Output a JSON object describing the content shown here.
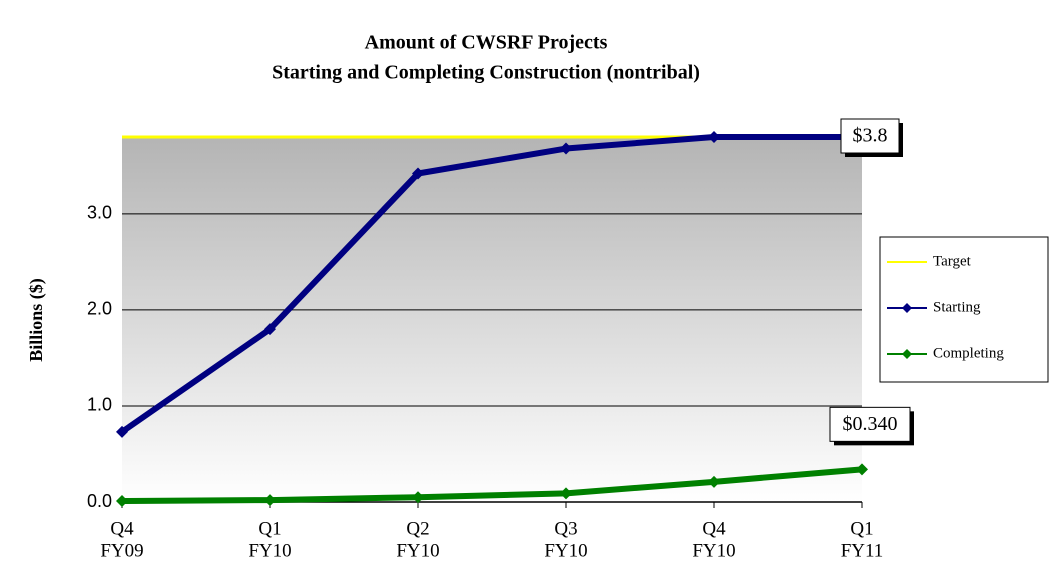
{
  "chart_data": {
    "type": "line",
    "title": [
      "Amount of CWSRF Projects",
      "Starting and Completing Construction (nontribal)"
    ],
    "y_label": "Billions ($)",
    "categories": [
      [
        "Q4",
        "FY09"
      ],
      [
        "Q1",
        "FY10"
      ],
      [
        "Q2",
        "FY10"
      ],
      [
        "Q3",
        "FY10"
      ],
      [
        "Q4",
        "FY10"
      ],
      [
        "Q1",
        "FY11"
      ]
    ],
    "series": [
      {
        "name": "Target",
        "color": "#ffff00",
        "values": [
          3.8,
          3.8,
          3.8,
          3.8,
          3.8,
          3.8
        ],
        "markers": false
      },
      {
        "name": "Starting",
        "color": "#000080",
        "values": [
          0.73,
          1.8,
          3.42,
          3.68,
          3.8,
          3.8
        ],
        "markers": true
      },
      {
        "name": "Completing",
        "color": "#008000",
        "values": [
          0.01,
          0.02,
          0.05,
          0.09,
          0.21,
          0.34
        ],
        "markers": true
      }
    ],
    "annotations": [
      {
        "text": "$3.8",
        "series": 1,
        "point": 5
      },
      {
        "text": "$0.340",
        "series": 2,
        "point": 5
      }
    ],
    "ylim": [
      0,
      3.8
    ],
    "yticks": [
      {
        "value": 0,
        "label": "0.0"
      },
      {
        "value": 1,
        "label": "1.0"
      },
      {
        "value": 2,
        "label": "2.0"
      },
      {
        "value": 3,
        "label": "3.0"
      }
    ],
    "grid": true,
    "legend": "right"
  }
}
